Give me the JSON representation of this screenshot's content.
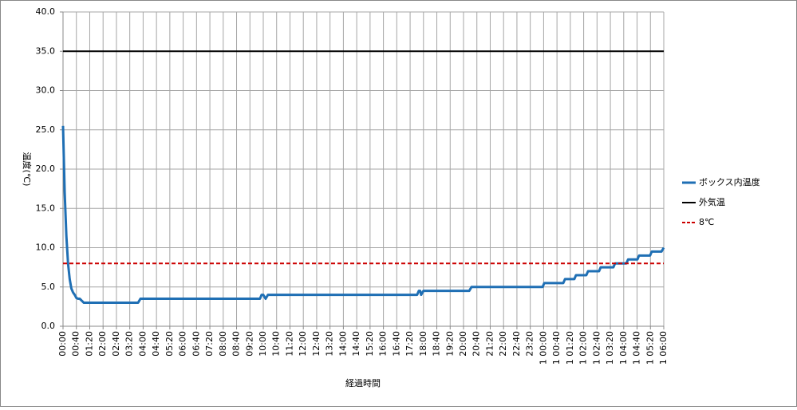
{
  "chart_data": {
    "type": "line",
    "y_label": "温度(℃)",
    "x_label": "経過時間",
    "xlim": [
      0,
      1800
    ],
    "xticks": [
      {
        "value": 0,
        "label": "00:00"
      },
      {
        "value": 40,
        "label": "00:40"
      },
      {
        "value": 80,
        "label": "01:20"
      },
      {
        "value": 120,
        "label": "02:00"
      },
      {
        "value": 160,
        "label": "02:40"
      },
      {
        "value": 200,
        "label": "03:20"
      },
      {
        "value": 240,
        "label": "04:00"
      },
      {
        "value": 280,
        "label": "04:40"
      },
      {
        "value": 320,
        "label": "05:20"
      },
      {
        "value": 360,
        "label": "06:00"
      },
      {
        "value": 400,
        "label": "06:40"
      },
      {
        "value": 440,
        "label": "07:20"
      },
      {
        "value": 480,
        "label": "08:00"
      },
      {
        "value": 520,
        "label": "08:40"
      },
      {
        "value": 560,
        "label": "09:20"
      },
      {
        "value": 600,
        "label": "10:00"
      },
      {
        "value": 640,
        "label": "10:40"
      },
      {
        "value": 680,
        "label": "11:20"
      },
      {
        "value": 720,
        "label": "12:00"
      },
      {
        "value": 760,
        "label": "12:40"
      },
      {
        "value": 800,
        "label": "13:20"
      },
      {
        "value": 840,
        "label": "14:00"
      },
      {
        "value": 880,
        "label": "14:40"
      },
      {
        "value": 920,
        "label": "15:20"
      },
      {
        "value": 960,
        "label": "16:00"
      },
      {
        "value": 1000,
        "label": "16:40"
      },
      {
        "value": 1040,
        "label": "17:20"
      },
      {
        "value": 1080,
        "label": "18:00"
      },
      {
        "value": 1120,
        "label": "18:40"
      },
      {
        "value": 1160,
        "label": "19:20"
      },
      {
        "value": 1200,
        "label": "20:00"
      },
      {
        "value": 1240,
        "label": "20:40"
      },
      {
        "value": 1280,
        "label": "21:20"
      },
      {
        "value": 1320,
        "label": "22:00"
      },
      {
        "value": 1360,
        "label": "22:40"
      },
      {
        "value": 1400,
        "label": "23:20"
      },
      {
        "value": 1440,
        "label": "1 00:00"
      },
      {
        "value": 1480,
        "label": "1 00:40"
      },
      {
        "value": 1520,
        "label": "1 01:20"
      },
      {
        "value": 1560,
        "label": "1 02:00"
      },
      {
        "value": 1600,
        "label": "1 02:40"
      },
      {
        "value": 1640,
        "label": "1 03:20"
      },
      {
        "value": 1680,
        "label": "1 04:00"
      },
      {
        "value": 1720,
        "label": "1 04:40"
      },
      {
        "value": 1760,
        "label": "1 05:20"
      },
      {
        "value": 1800,
        "label": "1 06:00"
      }
    ],
    "ylim": [
      0,
      40
    ],
    "yticks": [
      {
        "value": 0,
        "label": "0.0"
      },
      {
        "value": 5,
        "label": "5.0"
      },
      {
        "value": 10,
        "label": "10.0"
      },
      {
        "value": 15,
        "label": "15.0"
      },
      {
        "value": 20,
        "label": "20.0"
      },
      {
        "value": 25,
        "label": "25.0"
      },
      {
        "value": 30,
        "label": "30.0"
      },
      {
        "value": 35,
        "label": "35.0"
      },
      {
        "value": 40,
        "label": "40.0"
      }
    ],
    "grid": true,
    "legend": "right",
    "series": [
      {
        "name": "ボックス内温度",
        "color": "#1f6fb4",
        "line_style": "solid",
        "x": [
          0,
          5,
          10,
          15,
          20,
          25,
          30,
          35,
          40,
          45,
          50,
          55,
          62,
          65,
          225,
          232,
          590,
          595,
          600,
          607,
          614,
          1061,
          1066,
          1070,
          1073,
          1080,
          1217,
          1224,
          1437,
          1442,
          1499,
          1504,
          1532,
          1537,
          1568,
          1573,
          1606,
          1611,
          1649,
          1654,
          1688,
          1693,
          1721,
          1726,
          1759,
          1764,
          1793,
          1800
        ],
        "values": [
          25.5,
          17,
          11.5,
          8,
          6,
          4.8,
          4.3,
          4,
          3.6,
          3.5,
          3.5,
          3.3,
          3,
          3,
          3,
          3.5,
          3.5,
          4,
          4,
          3.5,
          4,
          4,
          4.5,
          4.5,
          4,
          4.5,
          4.5,
          5,
          5,
          5.5,
          5.5,
          6,
          6,
          6.5,
          6.5,
          7,
          7,
          7.5,
          7.5,
          8,
          8,
          8.5,
          8.5,
          9,
          9,
          9.5,
          9.5,
          10
        ]
      },
      {
        "name": "外気温",
        "color": "#000000",
        "line_style": "solid",
        "x": [
          0,
          1800
        ],
        "values": [
          35,
          35
        ]
      },
      {
        "name": "8℃",
        "color": "#cc0000",
        "line_style": "dashed",
        "x": [
          0,
          1800
        ],
        "values": [
          8,
          8
        ]
      }
    ]
  }
}
